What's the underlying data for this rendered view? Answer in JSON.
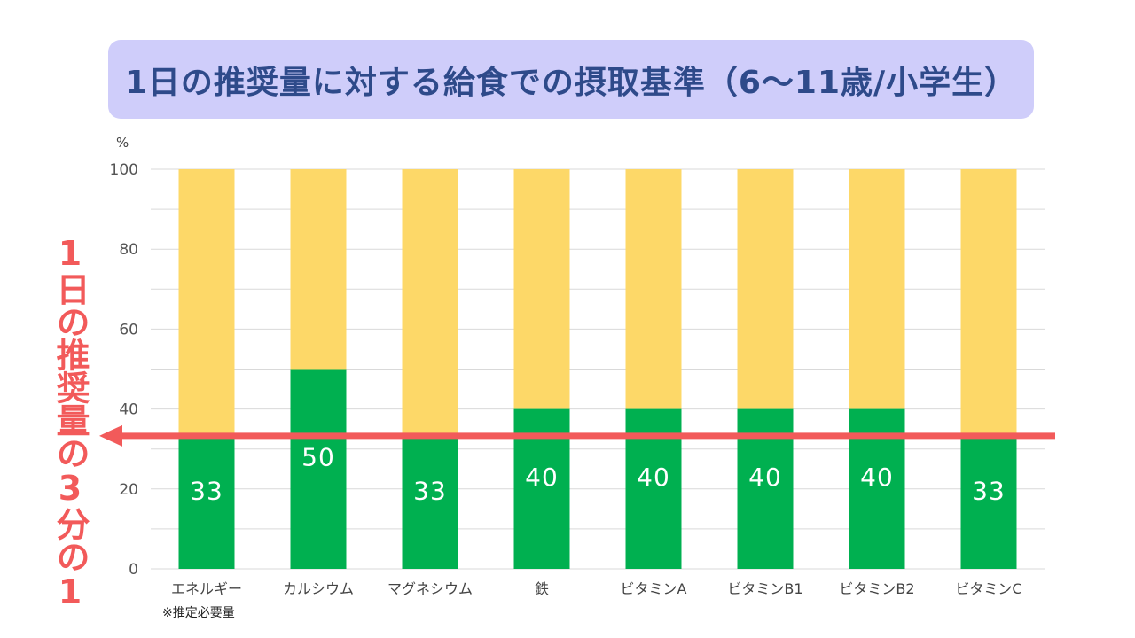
{
  "title": "1日の推奨量に対する給食での摂取基準（6～11歳/小学生）",
  "unit": "%",
  "side_label": "1日の推奨量の3分の1",
  "footnote": "※推定必要量",
  "colors": {
    "title_bg": "#cfcdfa",
    "title_text": "#2e4a8a",
    "bar_value": "#00b050",
    "bar_rest": "#fdd868",
    "arrow": "#f25a5a",
    "grid": "#d9d9d9"
  },
  "chart_data": {
    "type": "bar",
    "stacked": true,
    "categories": [
      "エネルギー",
      "カルシウム",
      "マグネシウム",
      "鉄",
      "ビタミンA",
      "ビタミンB1",
      "ビタミンB2",
      "ビタミンC"
    ],
    "series": [
      {
        "values": [
          33,
          50,
          33,
          40,
          40,
          40,
          40,
          33
        ]
      },
      {
        "values": [
          67,
          50,
          67,
          60,
          60,
          60,
          60,
          67
        ]
      }
    ],
    "data_labels": [
      "33",
      "50",
      "33",
      "40",
      "40",
      "40",
      "40",
      "33"
    ],
    "yticks": [
      "0",
      "20",
      "40",
      "60",
      "80",
      "100"
    ],
    "ylim": [
      0,
      100
    ],
    "reference_line": 33.3,
    "grid": true,
    "ylabel": "%"
  }
}
